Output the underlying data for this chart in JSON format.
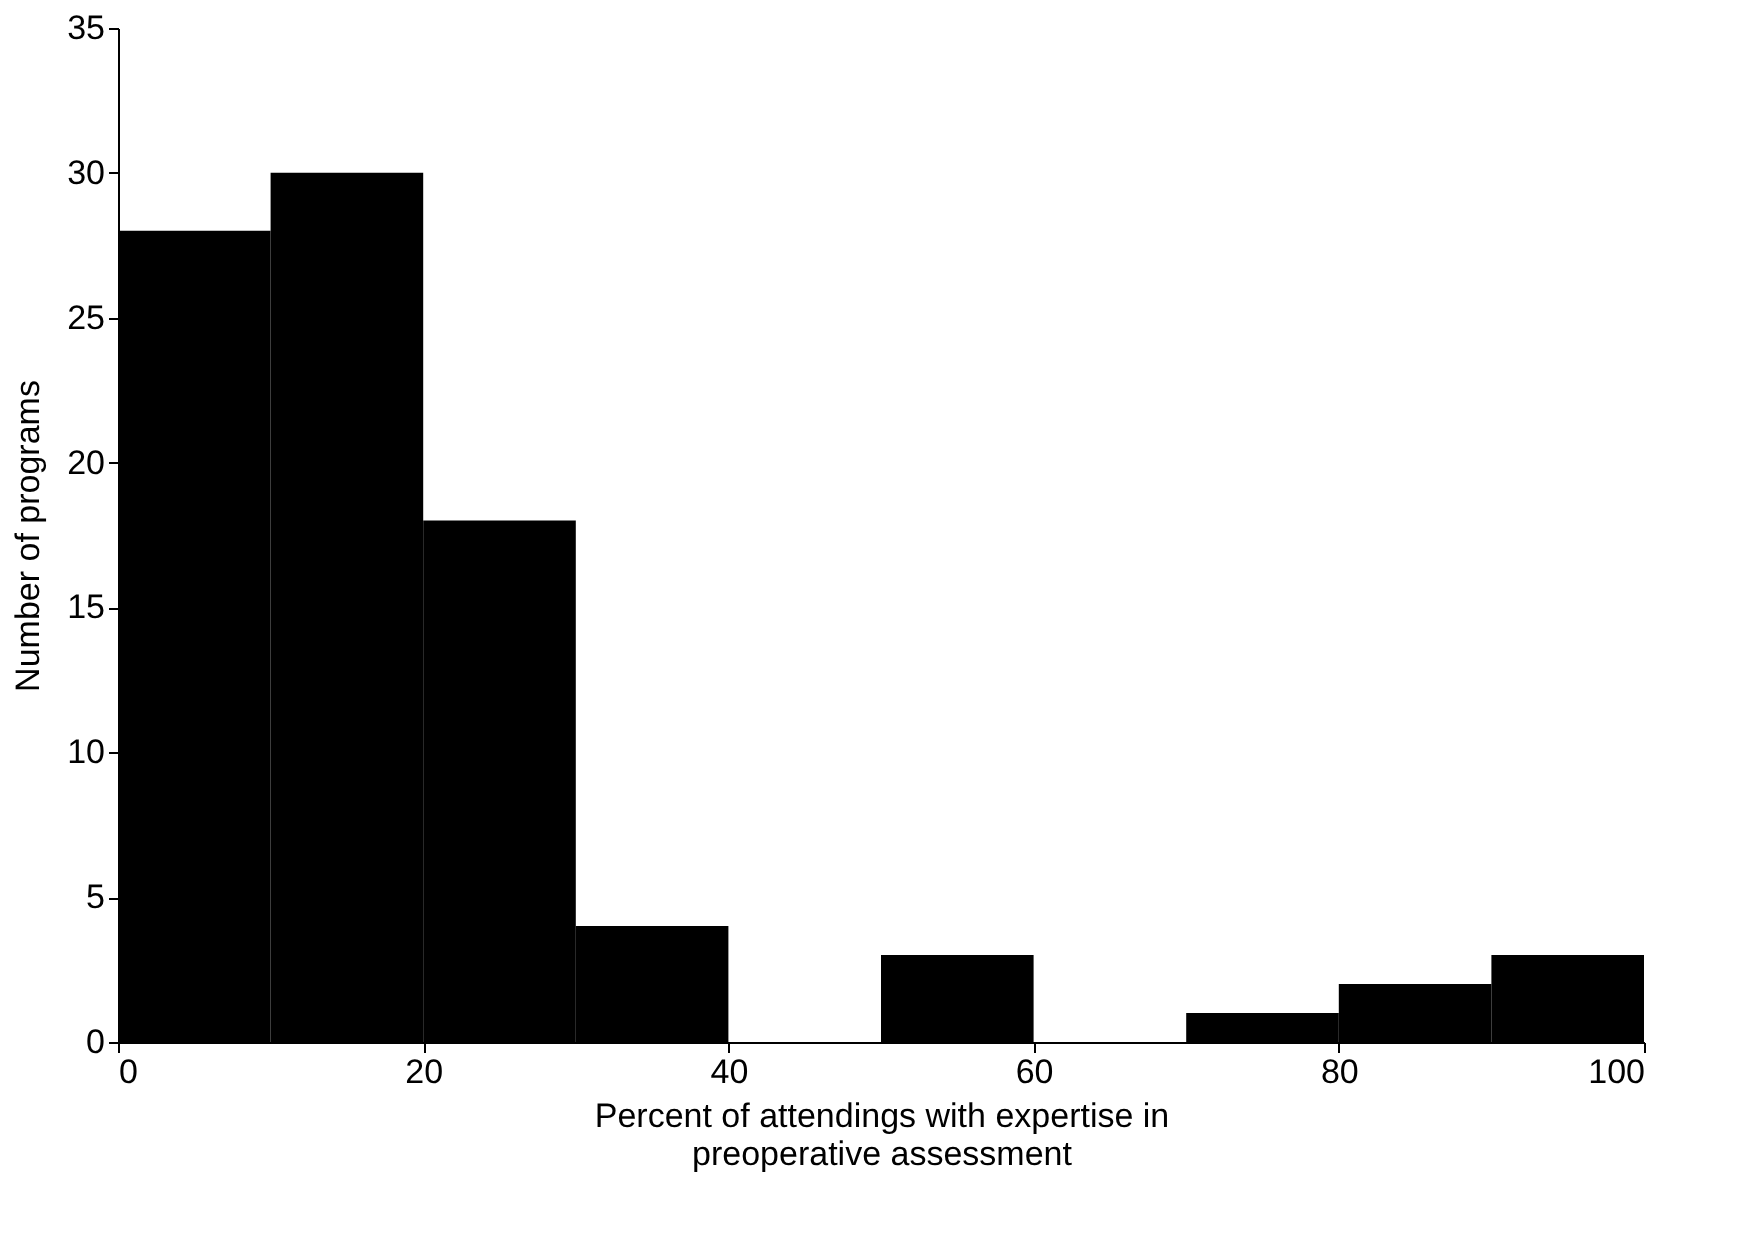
{
  "chart_data": {
    "type": "histogram",
    "xlabel": "Percent of attendings with expertise in preoperative assessment",
    "ylabel": "Number of programs",
    "bins": [
      0,
      10,
      20,
      30,
      40,
      50,
      60,
      70,
      80,
      90,
      100
    ],
    "values": [
      28,
      30,
      18,
      4,
      0,
      3,
      0,
      1,
      2,
      3
    ],
    "color": "#000000",
    "xlim": [
      0,
      100
    ],
    "xticks": [
      0,
      20,
      40,
      60,
      80,
      100
    ],
    "ylim": [
      0,
      35
    ],
    "yticks": [
      0,
      5,
      10,
      15,
      20,
      25,
      30,
      35
    ],
    "grid": false
  }
}
